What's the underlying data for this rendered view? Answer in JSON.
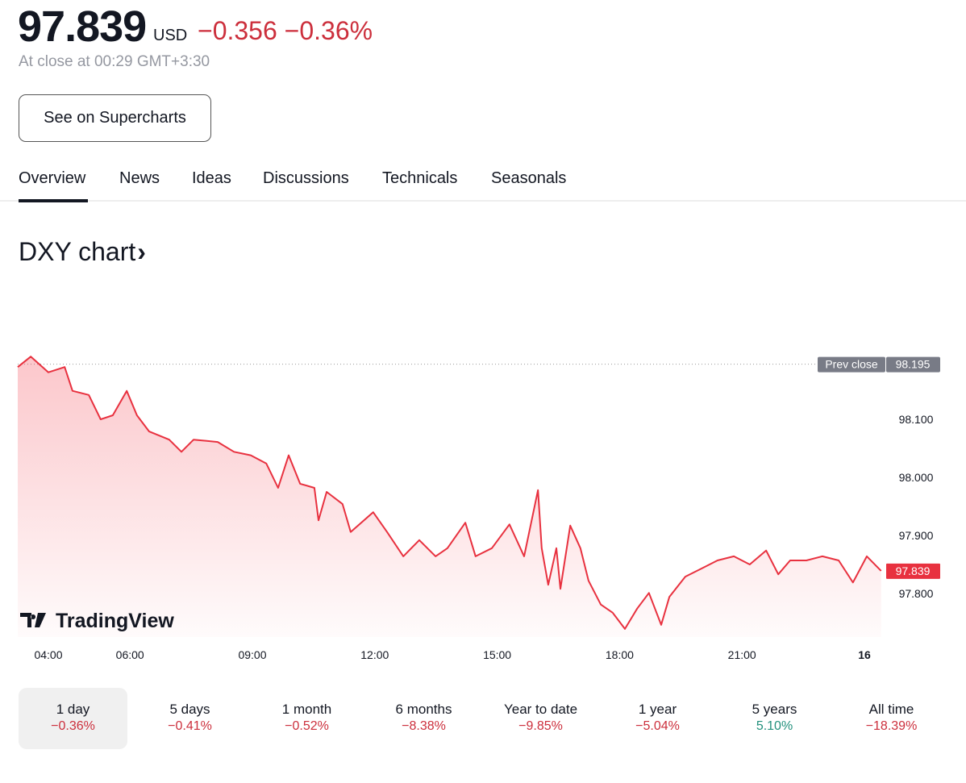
{
  "header": {
    "price": "97.839",
    "currency": "USD",
    "change": "−0.356 −0.36%",
    "close_text": "At close at 00:29 GMT+3:30",
    "supercharts_button": "See on Supercharts"
  },
  "tabs": [
    {
      "label": "Overview",
      "active": true
    },
    {
      "label": "News"
    },
    {
      "label": "Ideas"
    },
    {
      "label": "Discussions"
    },
    {
      "label": "Technicals"
    },
    {
      "label": "Seasonals"
    }
  ],
  "chart_title": "DXY chart",
  "chart_title_chevron": "›",
  "logo": "TradingView",
  "colors": {
    "line": "#e8313f",
    "down": "#cc2f3c",
    "up": "#22907c",
    "prev_close_bg": "#787b86"
  },
  "chart_data": {
    "type": "area",
    "title": "DXY chart",
    "x_unit": "hours since midnight",
    "x": [
      3.25,
      3.57,
      4.0,
      4.4,
      4.59,
      4.99,
      5.28,
      5.58,
      5.92,
      6.17,
      6.47,
      6.96,
      7.26,
      7.56,
      8.15,
      8.55,
      8.96,
      9.34,
      9.63,
      9.89,
      10.17,
      10.52,
      10.62,
      10.82,
      11.21,
      11.41,
      11.96,
      12.3,
      12.7,
      13.09,
      13.49,
      13.78,
      14.22,
      14.47,
      14.87,
      15.3,
      15.66,
      16.0,
      16.09,
      16.25,
      16.45,
      16.55,
      16.79,
      17.04,
      17.24,
      17.54,
      17.83,
      18.13,
      18.43,
      18.72,
      19.02,
      19.22,
      19.61,
      20.01,
      20.4,
      20.8,
      21.19,
      21.59,
      21.89,
      22.18,
      22.58,
      22.97,
      23.37,
      23.72,
      24.06,
      24.41
    ],
    "y": [
      98.19,
      98.208,
      98.181,
      98.19,
      98.149,
      98.142,
      98.1,
      98.107,
      98.149,
      98.107,
      98.079,
      98.065,
      98.044,
      98.065,
      98.061,
      98.044,
      98.038,
      98.024,
      97.982,
      98.038,
      97.989,
      97.982,
      97.926,
      97.975,
      97.954,
      97.906,
      97.94,
      97.906,
      97.864,
      97.892,
      97.864,
      97.878,
      97.922,
      97.864,
      97.878,
      97.919,
      97.864,
      97.978,
      97.878,
      97.815,
      97.878,
      97.808,
      97.917,
      97.878,
      97.822,
      97.781,
      97.767,
      97.739,
      97.774,
      97.801,
      97.746,
      97.794,
      97.829,
      97.843,
      97.857,
      97.864,
      97.85,
      97.874,
      97.833,
      97.857,
      97.857,
      97.864,
      97.857,
      97.819,
      97.864,
      97.839
    ],
    "y_ticks": [
      "98.100",
      "98.000",
      "97.900",
      "97.800"
    ],
    "y_tick_values": [
      98.1,
      98.0,
      97.9,
      97.8
    ],
    "x_ticks": [
      "04:00",
      "06:00",
      "09:00",
      "12:00",
      "15:00",
      "18:00",
      "21:00",
      "16"
    ],
    "x_tick_values": [
      4,
      6,
      9,
      12,
      15,
      18,
      21,
      24
    ],
    "prev_close": {
      "label": "Prev close",
      "value": 98.195,
      "text": "98.195"
    },
    "last": {
      "value": 97.839,
      "text": "97.839"
    }
  },
  "periods": [
    {
      "label": "1 day",
      "change": "−0.36%",
      "dir": "down",
      "selected": true
    },
    {
      "label": "5 days",
      "change": "−0.41%",
      "dir": "down"
    },
    {
      "label": "1 month",
      "change": "−0.52%",
      "dir": "down"
    },
    {
      "label": "6 months",
      "change": "−8.38%",
      "dir": "down"
    },
    {
      "label": "Year to date",
      "change": "−9.85%",
      "dir": "down"
    },
    {
      "label": "1 year",
      "change": "−5.04%",
      "dir": "down"
    },
    {
      "label": "5 years",
      "change": "5.10%",
      "dir": "up"
    },
    {
      "label": "All time",
      "change": "−18.39%",
      "dir": "down"
    }
  ]
}
